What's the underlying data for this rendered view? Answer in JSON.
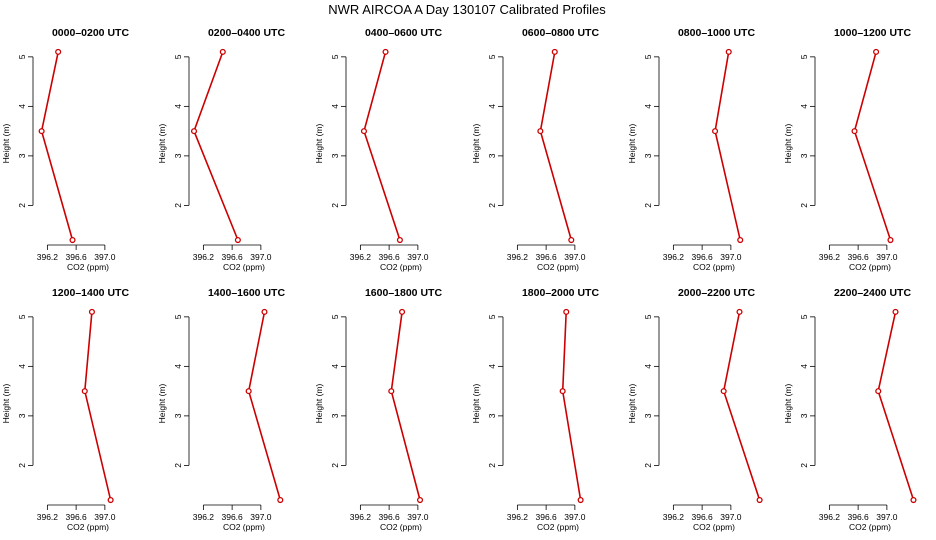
{
  "title": "NWR AIRCOA A  Day 130107  Calibrated Profiles",
  "colors": {
    "line": "#cc0000",
    "axis": "#000000"
  },
  "chart_data": {
    "type": "line",
    "title": "NWR AIRCOA A  Day 130107  Calibrated Profiles",
    "xlabel": "CO2 (ppm)",
    "ylabel": "Height (m)",
    "xlim": [
      396.0,
      397.6
    ],
    "ylim": [
      1.2,
      5.3
    ],
    "xticks": [
      396.2,
      396.6,
      397.0
    ],
    "xtick_labels": [
      "396.2",
      "396.6",
      "397.0"
    ],
    "yticks": [
      2,
      3,
      4,
      5
    ],
    "ytick_labels": [
      "2",
      "3",
      "4",
      "5"
    ],
    "heights": [
      5.1,
      3.5,
      1.3
    ],
    "panels": [
      {
        "title": "0000–0200 UTC",
        "co2": [
          396.35,
          396.12,
          396.55
        ]
      },
      {
        "title": "0200–0400 UTC",
        "co2": [
          396.47,
          396.07,
          396.68
        ]
      },
      {
        "title": "0400–0600 UTC",
        "co2": [
          396.55,
          396.25,
          396.75
        ]
      },
      {
        "title": "0600–0800 UTC",
        "co2": [
          396.72,
          396.52,
          396.95
        ]
      },
      {
        "title": "0800–1000 UTC",
        "co2": [
          396.97,
          396.78,
          397.13
        ]
      },
      {
        "title": "1000–1200 UTC",
        "co2": [
          396.85,
          396.55,
          397.05
        ]
      },
      {
        "title": "1200–1400 UTC",
        "co2": [
          396.82,
          396.72,
          397.08
        ]
      },
      {
        "title": "1400–1600 UTC",
        "co2": [
          397.05,
          396.83,
          397.27
        ]
      },
      {
        "title": "1600–1800 UTC",
        "co2": [
          396.78,
          396.63,
          397.03
        ]
      },
      {
        "title": "1800–2000 UTC",
        "co2": [
          396.88,
          396.83,
          397.08
        ]
      },
      {
        "title": "2000–2200 UTC",
        "co2": [
          397.12,
          396.9,
          397.4
        ]
      },
      {
        "title": "2200–2400 UTC",
        "co2": [
          397.12,
          396.88,
          397.37
        ]
      }
    ]
  }
}
